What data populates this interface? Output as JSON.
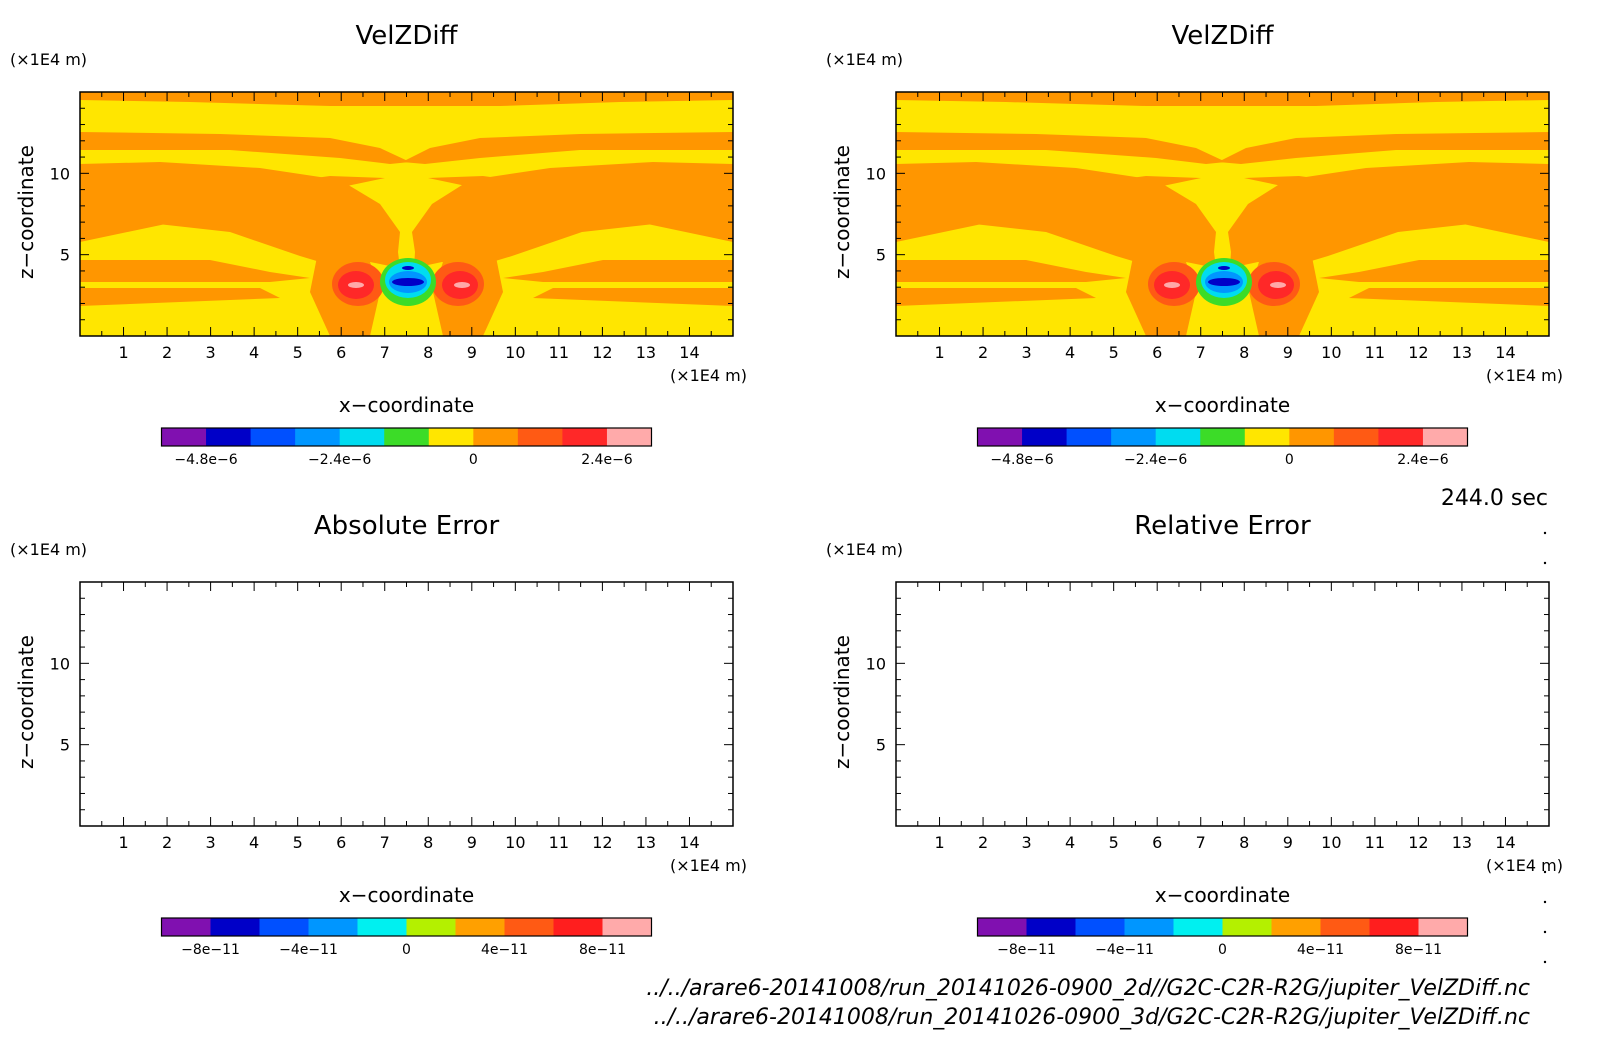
{
  "time_label": "244.0 sec",
  "files": [
    "../../arare6-20141008/run_20141026-0900_2d//G2C-C2R-R2G/jupiter_VelZDiff.nc",
    "../../arare6-20141008/run_20141026-0900_3d/G2C-C2R-R2G/jupiter_VelZDiff.nc"
  ],
  "chart_data": [
    {
      "type": "heatmap",
      "title": "VelZDiff",
      "xlabel": "x−coordinate",
      "ylabel": "z−coordinate",
      "x_unit": "(×1E4 m)",
      "y_unit": "(×1E4 m)",
      "xlim": [
        0,
        15
      ],
      "ylim": [
        0,
        15
      ],
      "x_ticks": [
        "1",
        "2",
        "3",
        "4",
        "5",
        "6",
        "7",
        "8",
        "9",
        "10",
        "11",
        "12",
        "13",
        "14"
      ],
      "y_ticks": [
        "5",
        "10"
      ],
      "field": "filled contour, mostly 0 to 0.8e-6 (yellow/orange bands), vortex pair near x=7.5, z=3 with minimum about -4.8e-6 and maxima about 2.4e-6",
      "colorbar": {
        "colors": [
          "#8010b0",
          "#0000c8",
          "#0050ff",
          "#0096ff",
          "#00dcf0",
          "#3cdc28",
          "#ffe600",
          "#ff9600",
          "#ff5a14",
          "#ff2828",
          "#ffaaaa"
        ],
        "tick_labels": [
          "−4.8e−6",
          "−2.4e−6",
          "0",
          "2.4e−6"
        ]
      }
    },
    {
      "type": "heatmap",
      "title": "VelZDiff",
      "xlabel": "x−coordinate",
      "ylabel": "z−coordinate",
      "x_unit": "(×1E4 m)",
      "y_unit": "(×1E4 m)",
      "xlim": [
        0,
        15
      ],
      "ylim": [
        0,
        15
      ],
      "x_ticks": [
        "1",
        "2",
        "3",
        "4",
        "5",
        "6",
        "7",
        "8",
        "9",
        "10",
        "11",
        "12",
        "13",
        "14"
      ],
      "y_ticks": [
        "5",
        "10"
      ],
      "field": "identical to the left VelZDiff panel",
      "colorbar": {
        "colors": [
          "#8010b0",
          "#0000c8",
          "#0050ff",
          "#0096ff",
          "#00dcf0",
          "#3cdc28",
          "#ffe600",
          "#ff9600",
          "#ff5a14",
          "#ff2828",
          "#ffaaaa"
        ],
        "tick_labels": [
          "−4.8e−6",
          "−2.4e−6",
          "0",
          "2.4e−6"
        ]
      }
    },
    {
      "type": "heatmap",
      "title": "Absolute Error",
      "xlabel": "x−coordinate",
      "ylabel": "z−coordinate",
      "x_unit": "(×1E4 m)",
      "y_unit": "(×1E4 m)",
      "xlim": [
        0,
        15
      ],
      "ylim": [
        0,
        15
      ],
      "x_ticks": [
        "1",
        "2",
        "3",
        "4",
        "5",
        "6",
        "7",
        "8",
        "9",
        "10",
        "11",
        "12",
        "13",
        "14"
      ],
      "y_ticks": [
        "5",
        "10"
      ],
      "field": "empty (zero everywhere)",
      "colorbar": {
        "colors": [
          "#8010b0",
          "#0000c8",
          "#0050ff",
          "#0096ff",
          "#00f0f0",
          "#b4f000",
          "#ffa000",
          "#ff5a14",
          "#ff1e1e",
          "#ffaaaa"
        ],
        "tick_labels": [
          "−8e−11",
          "−4e−11",
          "0",
          "4e−11",
          "8e−11"
        ]
      }
    },
    {
      "type": "heatmap",
      "title": "Relative Error",
      "xlabel": "x−coordinate",
      "ylabel": "z−coordinate",
      "x_unit": "(×1E4 m)",
      "y_unit": "(×1E4 m)",
      "xlim": [
        0,
        15
      ],
      "ylim": [
        0,
        15
      ],
      "x_ticks": [
        "1",
        "2",
        "3",
        "4",
        "5",
        "6",
        "7",
        "8",
        "9",
        "10",
        "11",
        "12",
        "13",
        "14"
      ],
      "y_ticks": [
        "5",
        "10"
      ],
      "field": "empty (zero everywhere)",
      "colorbar": {
        "colors": [
          "#8010b0",
          "#0000c8",
          "#0050ff",
          "#0096ff",
          "#00f0f0",
          "#b4f000",
          "#ffa000",
          "#ff5a14",
          "#ff1e1e",
          "#ffaaaa"
        ],
        "tick_labels": [
          "−8e−11",
          "−4e−11",
          "0",
          "4e−11",
          "8e−11"
        ]
      }
    }
  ]
}
